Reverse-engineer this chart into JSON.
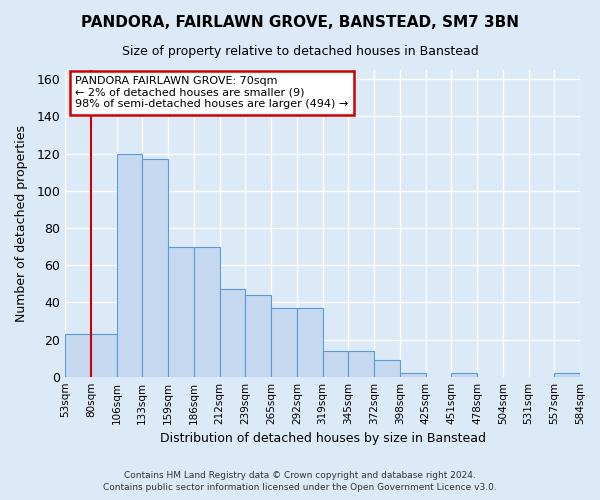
{
  "title": "PANDORA, FAIRLAWN GROVE, BANSTEAD, SM7 3BN",
  "subtitle": "Size of property relative to detached houses in Banstead",
  "xlabel": "Distribution of detached houses by size in Banstead",
  "ylabel": "Number of detached properties",
  "bar_values": [
    23,
    23,
    120,
    117,
    70,
    70,
    47,
    44,
    37,
    37,
    14,
    14,
    9,
    2,
    0,
    2,
    0,
    0,
    0,
    2
  ],
  "bar_labels": [
    "53sqm",
    "80sqm",
    "106sqm",
    "133sqm",
    "159sqm",
    "186sqm",
    "212sqm",
    "239sqm",
    "265sqm",
    "292sqm",
    "319sqm",
    "345sqm",
    "372sqm",
    "398sqm",
    "425sqm",
    "451sqm",
    "478sqm",
    "504sqm",
    "531sqm",
    "557sqm",
    "584sqm"
  ],
  "bar_color": "#c5d8f0",
  "bar_edge_color": "#5b9bd5",
  "annotation_title": "PANDORA FAIRLAWN GROVE: 70sqm",
  "annotation_line1": "← 2% of detached houses are smaller (9)",
  "annotation_line2": "98% of semi-detached houses are larger (494) →",
  "annotation_box_color": "#ffffff",
  "annotation_box_edge_color": "#cc0000",
  "vline_color": "#cc0000",
  "ylim": [
    0,
    165
  ],
  "yticks": [
    0,
    20,
    40,
    60,
    80,
    100,
    120,
    140,
    160
  ],
  "background_color": "#dce9f7",
  "grid_color": "#ffffff",
  "footer1": "Contains HM Land Registry data © Crown copyright and database right 2024.",
  "footer2": "Contains public sector information licensed under the Open Government Licence v3.0."
}
